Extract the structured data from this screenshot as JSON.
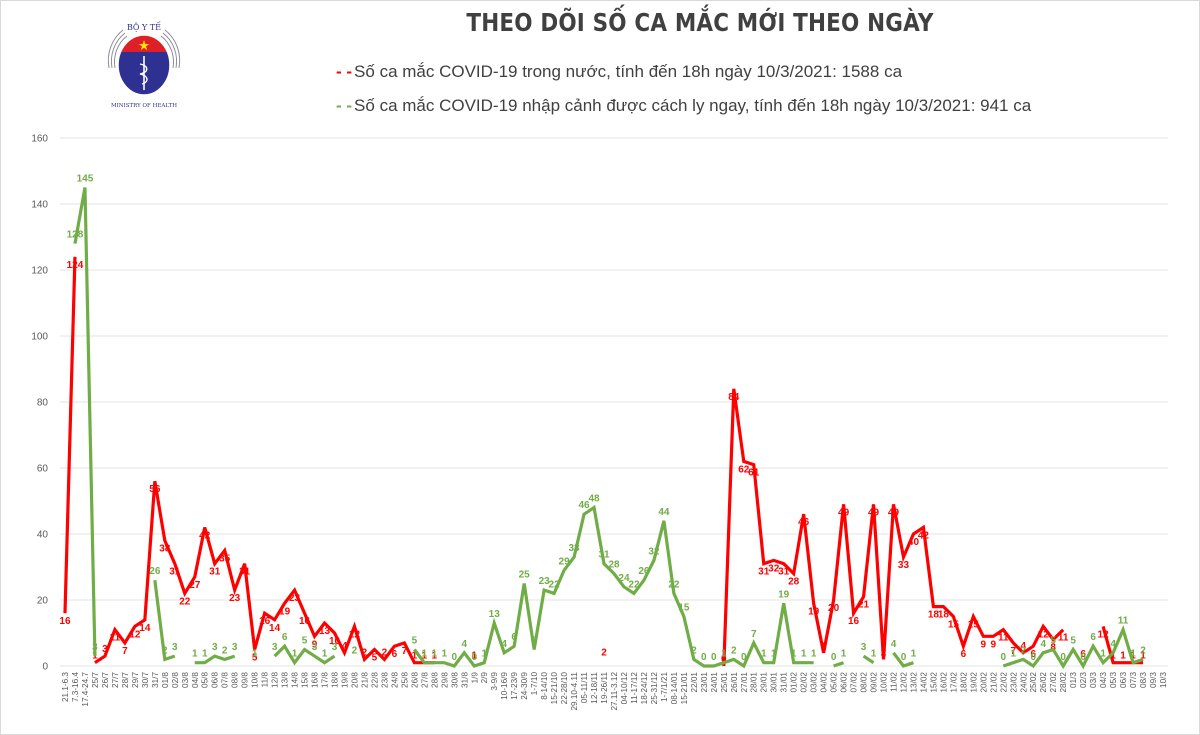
{
  "header": {
    "logo": {
      "top_text": "BỘ Y TẾ",
      "bottom_text": "MINISTRY OF HEALTH",
      "colors": {
        "red": "#e02027",
        "blue": "#2e3192",
        "star": "#ffde00"
      }
    },
    "title": "THEO DÕI SỐ CA MẮC MỚI THEO NGÀY"
  },
  "legend": [
    {
      "marker": "- -",
      "text": "Số ca mắc COVID-19 trong nước, tính đến 18h ngày 10/3/2021: 1588 ca",
      "color": "#ff0000"
    },
    {
      "marker": "- -",
      "text": "Số ca mắc COVID-19 nhập cảnh được cách ly ngay, tính đến 18h ngày 10/3/2021: 941 ca",
      "color": "#70ad47"
    }
  ],
  "chart_data": {
    "type": "line",
    "title": "THEO DÕI SỐ CA MẮC MỚI THEO NGÀY",
    "xlabel": "",
    "ylabel": "",
    "ylim": [
      0,
      160
    ],
    "yticks": [
      0,
      20,
      40,
      60,
      80,
      100,
      120,
      140,
      160
    ],
    "grid": true,
    "legend_position": "top",
    "categories": [
      "21.1-6.3",
      "7.3-16.4",
      "17.4-24.7",
      "25/7",
      "26/7",
      "27/7",
      "28/7",
      "29/7",
      "30/7",
      "31/7",
      "01/8",
      "02/8",
      "03/8",
      "04/8",
      "05/8",
      "06/8",
      "07/8",
      "08/8",
      "09/8",
      "10/8",
      "11/8",
      "12/8",
      "13/8",
      "14/8",
      "15/8",
      "16/8",
      "17/8",
      "18/8",
      "19/8",
      "20/8",
      "21/8",
      "22/8",
      "23/8",
      "24/8",
      "25/8",
      "26/8",
      "27/8",
      "28/8",
      "29/8",
      "30/8",
      "31/8",
      "1/9",
      "2/9",
      "3-9/9",
      "10-16/9",
      "17-23/9",
      "24-30/9",
      "1-7/10",
      "8-14/10",
      "15-21/10",
      "22-28/10",
      "29.10-4.11",
      "05-11/11",
      "12-18/11",
      "19-26/11",
      "27.11-3.12",
      "04-10/12",
      "11-17/12",
      "18-24/12",
      "25-31/12",
      "1-7/1/21",
      "08-14/01",
      "15-21/01",
      "22/01",
      "23/01",
      "24/01",
      "25/01",
      "26/01",
      "27/01",
      "28/01",
      "29/01",
      "30/01",
      "31/01",
      "01/02",
      "02/02",
      "03/02",
      "04/02",
      "05/02",
      "06/02",
      "07/02",
      "08/02",
      "09/02",
      "10/02",
      "11/02",
      "12/02",
      "13/02",
      "14/02",
      "15/02",
      "16/02",
      "17/02",
      "18/02",
      "19/02",
      "20/02",
      "21/02",
      "22/02",
      "23/02",
      "24/02",
      "25/02",
      "26/02",
      "27/02",
      "28/02",
      "01/3",
      "02/3",
      "03/3",
      "04/3",
      "05/3",
      "06/3",
      "07/3",
      "08/3",
      "09/3",
      "10/3"
    ],
    "series": [
      {
        "name": "Số ca mắc COVID-19 trong nước",
        "color": "#ff0000",
        "values": [
          16,
          124,
          null,
          1,
          3,
          11,
          7,
          12,
          14,
          56,
          38,
          31,
          22,
          27,
          42,
          31,
          35,
          23,
          31,
          5,
          16,
          14,
          19,
          23,
          16,
          9,
          13,
          10,
          4,
          12,
          2,
          5,
          2,
          6,
          7,
          1,
          1,
          1,
          null,
          null,
          null,
          1,
          null,
          null,
          null,
          null,
          null,
          null,
          null,
          null,
          null,
          null,
          null,
          null,
          2,
          null,
          null,
          null,
          null,
          null,
          null,
          null,
          null,
          null,
          null,
          null,
          0,
          84,
          62,
          61,
          31,
          32,
          31,
          28,
          46,
          19,
          4,
          20,
          49,
          16,
          21,
          49,
          2,
          49,
          33,
          40,
          42,
          18,
          18,
          15,
          6,
          15,
          9,
          9,
          11,
          7,
          4,
          6,
          12,
          8,
          11,
          null,
          6,
          null,
          12,
          1,
          1,
          1,
          1,
          null,
          null,
          null,
          null,
          null,
          null,
          null,
          null
        ]
      },
      {
        "name": "Số ca mắc COVID-19 nhập cảnh được cách ly ngay",
        "color": "#70ad47",
        "values": [
          null,
          128,
          145,
          3,
          null,
          null,
          null,
          null,
          null,
          26,
          2,
          3,
          null,
          1,
          1,
          3,
          2,
          3,
          null,
          1,
          null,
          3,
          6,
          1,
          5,
          3,
          1,
          3,
          null,
          2,
          null,
          null,
          null,
          null,
          null,
          5,
          1,
          1,
          1,
          0,
          4,
          0,
          1,
          13,
          4,
          6,
          25,
          5,
          23,
          22,
          29,
          33,
          46,
          48,
          31,
          28,
          24,
          22,
          26,
          32,
          44,
          22,
          15,
          2,
          0,
          0,
          1,
          2,
          0,
          7,
          1,
          1,
          19,
          1,
          1,
          1,
          null,
          0,
          1,
          null,
          3,
          1,
          null,
          4,
          0,
          1,
          null,
          null,
          null,
          null,
          null,
          null,
          null,
          null,
          0,
          1,
          2,
          0,
          4,
          5,
          0,
          5,
          0,
          6,
          1,
          4,
          11,
          1,
          2
        ]
      }
    ]
  }
}
